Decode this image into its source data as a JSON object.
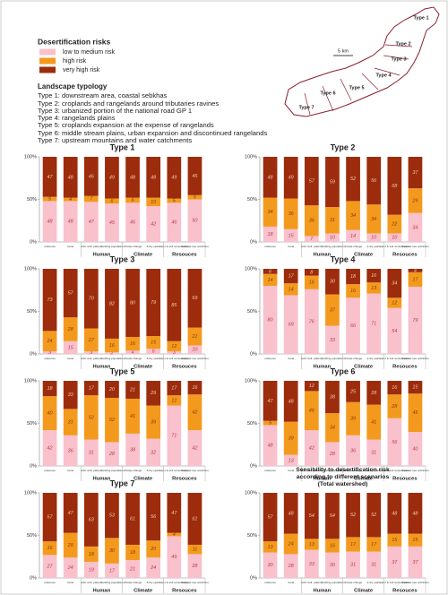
{
  "legend": {
    "title": "Desertification risks",
    "items": [
      {
        "name": "low to medium risk",
        "color": "#f8c1cc"
      },
      {
        "name": "high risk",
        "color": "#f39a1e"
      },
      {
        "name": "very high risk",
        "color": "#9c2c0c"
      }
    ]
  },
  "typology": {
    "title": "Landscape typology",
    "items": [
      "Type 1: downstream area, coastal sebkhas",
      "Type 2: croplands and rangelands around tributaries ravines",
      "Type 3: urbanized portion of the national road GP 1",
      "Type 4: rangelands plains",
      "Type 5: croplands expansion at the expense of rangelands",
      "Type 6: middle stream plains, urban expansion and discontinued rangelands",
      "Type 7: upstream mountains and water catchments"
    ]
  },
  "map": {
    "scale": "5 km",
    "labels": [
      "Type 1",
      "Type 2",
      "Type 3",
      "Type 4",
      "Type 5",
      "Type 6",
      "Type 7"
    ]
  },
  "chart_data": [
    {
      "type": "bar",
      "stacked": true,
      "title": "Type 1",
      "categories": [
        "reference",
        "trend",
        "arch./cult. pattern",
        "doubling population",
        "climate change",
        "4-dry years",
        "water & soil conservation",
        "firewood use restriction"
      ],
      "groups": [
        "Human",
        "Climate",
        "Resouces"
      ],
      "series": [
        {
          "color": "#f8c1cc",
          "values": [
            48,
            48,
            47,
            45,
            46,
            42,
            46,
            50
          ]
        },
        {
          "color": "#f39a1e",
          "values": [
            5,
            4,
            7,
            6,
            6,
            10,
            5,
            5
          ]
        },
        {
          "color": "#9c2c0c",
          "values": [
            47,
            48,
            46,
            49,
            48,
            48,
            49,
            45
          ]
        }
      ],
      "ylim": [
        0,
        100
      ],
      "yticks": [
        {
          "value": 0,
          "label": "0%"
        },
        {
          "value": 50,
          "label": "50%"
        },
        {
          "value": 100,
          "label": "100%"
        }
      ]
    },
    {
      "type": "bar",
      "stacked": true,
      "title": "Type 2",
      "categories": [
        "reference",
        "trend",
        "arch./cult. pattern",
        "doubling population",
        "climate change",
        "4-dry years",
        "water & soil conservation",
        "firewood use restriction"
      ],
      "groups": [
        "Human",
        "Climate",
        "Resouces"
      ],
      "series": [
        {
          "color": "#f8c1cc",
          "values": [
            18,
            15,
            7,
            10,
            14,
            10,
            10,
            34
          ]
        },
        {
          "color": "#f39a1e",
          "values": [
            34,
            36,
            36,
            31,
            34,
            34,
            22,
            29
          ]
        },
        {
          "color": "#9c2c0c",
          "values": [
            48,
            49,
            57,
            59,
            52,
            56,
            68,
            37
          ]
        }
      ],
      "ylim": [
        0,
        100
      ],
      "yticks": [
        {
          "value": 0,
          "label": "0%"
        },
        {
          "value": 50,
          "label": "50%"
        },
        {
          "value": 100,
          "label": "100%"
        }
      ]
    },
    {
      "type": "bar",
      "stacked": true,
      "title": "Type 3",
      "categories": [
        "reference",
        "trend",
        "arch./cult. pattern",
        "doubling population",
        "climate change",
        "4-dry years",
        "water & soil conservation",
        "firewood use restriction"
      ],
      "groups": [
        "Human",
        "Climate",
        "Resouces"
      ],
      "series": [
        {
          "color": "#f8c1cc",
          "values": [
            3,
            15,
            3,
            2,
            4,
            6,
            3,
            10
          ]
        },
        {
          "color": "#f39a1e",
          "values": [
            24,
            28,
            27,
            16,
            16,
            15,
            12,
            21
          ]
        },
        {
          "color": "#9c2c0c",
          "values": [
            73,
            57,
            70,
            82,
            80,
            79,
            85,
            69
          ]
        }
      ],
      "ylim": [
        0,
        100
      ],
      "yticks": [
        {
          "value": 0,
          "label": "0%"
        },
        {
          "value": 50,
          "label": "50%"
        },
        {
          "value": 100,
          "label": "100%"
        }
      ]
    },
    {
      "type": "bar",
      "stacked": true,
      "title": "Type 4",
      "categories": [
        "reference",
        "trend",
        "arch./cult. pattern",
        "doubling population",
        "climate change",
        "4-dry years",
        "water & soil conservation",
        "firewood use restriction"
      ],
      "groups": [
        "Human",
        "Climate",
        "Resouces"
      ],
      "series": [
        {
          "color": "#f8c1cc",
          "values": [
            80,
            69,
            76,
            33,
            66,
            71,
            54,
            79
          ]
        },
        {
          "color": "#f39a1e",
          "values": [
            14,
            14,
            16,
            37,
            16,
            13,
            12,
            17
          ]
        },
        {
          "color": "#9c2c0c",
          "values": [
            6,
            17,
            8,
            30,
            18,
            16,
            34,
            4
          ]
        }
      ],
      "ylim": [
        0,
        100
      ],
      "yticks": [
        {
          "value": 0,
          "label": "0%"
        },
        {
          "value": 50,
          "label": "50%"
        },
        {
          "value": 100,
          "label": "100%"
        }
      ]
    },
    {
      "type": "bar",
      "stacked": true,
      "title": "Type 5",
      "categories": [
        "reference",
        "trend",
        "arch./cult. pattern",
        "doubling population",
        "climate change",
        "4-dry years",
        "water & soil conservation",
        "firewood use restriction"
      ],
      "groups": [
        "Human",
        "Climate",
        "Resouces"
      ],
      "series": [
        {
          "color": "#f8c1cc",
          "values": [
            42,
            36,
            31,
            28,
            38,
            32,
            71,
            42
          ]
        },
        {
          "color": "#f39a1e",
          "values": [
            40,
            31,
            52,
            52,
            41,
            39,
            12,
            42
          ]
        },
        {
          "color": "#9c2c0c",
          "values": [
            18,
            33,
            17,
            20,
            21,
            29,
            17,
            16
          ]
        }
      ],
      "ylim": [
        0,
        100
      ],
      "yticks": [
        {
          "value": 0,
          "label": "0%"
        },
        {
          "value": 50,
          "label": "50%"
        },
        {
          "value": 100,
          "label": "100%"
        }
      ]
    },
    {
      "type": "bar",
      "stacked": true,
      "title": "Type 6",
      "categories": [
        "reference",
        "trend",
        "arch./cult. pattern",
        "doubling population",
        "climate change",
        "4-dry years",
        "water & soil conservation",
        "firewood use restriction"
      ],
      "groups": [
        "Human",
        "Climate",
        "Resouces"
      ],
      "series": [
        {
          "color": "#f8c1cc",
          "values": [
            48,
            13,
            42,
            28,
            36,
            31,
            56,
            40
          ]
        },
        {
          "color": "#f39a1e",
          "values": [
            5,
            39,
            46,
            34,
            39,
            41,
            28,
            45
          ]
        },
        {
          "color": "#9c2c0c",
          "values": [
            47,
            48,
            12,
            38,
            25,
            28,
            16,
            15
          ]
        }
      ],
      "ylim": [
        0,
        100
      ],
      "yticks": [
        {
          "value": 0,
          "label": "0%"
        },
        {
          "value": 50,
          "label": "50%"
        },
        {
          "value": 100,
          "label": "100%"
        }
      ]
    },
    {
      "type": "bar",
      "stacked": true,
      "title": "Type 7",
      "categories": [
        "reference",
        "trend",
        "arch./cult. pattern",
        "doubling population",
        "climate change",
        "4-dry years",
        "water & soil conservation",
        "firewood use restriction"
      ],
      "groups": [
        "Human",
        "Climate",
        "Resouces"
      ],
      "series": [
        {
          "color": "#f8c1cc",
          "values": [
            27,
            24,
            19,
            17,
            21,
            24,
            49,
            28
          ]
        },
        {
          "color": "#f39a1e",
          "values": [
            16,
            29,
            18,
            30,
            18,
            20,
            4,
            11
          ]
        },
        {
          "color": "#9c2c0c",
          "values": [
            57,
            47,
            63,
            53,
            61,
            56,
            47,
            61
          ]
        }
      ],
      "ylim": [
        0,
        100
      ],
      "yticks": [
        {
          "value": 0,
          "label": "0%"
        },
        {
          "value": 50,
          "label": "50%"
        },
        {
          "value": 100,
          "label": "100%"
        }
      ]
    },
    {
      "type": "bar",
      "stacked": true,
      "title": "Sensibility to desertification risk according to different scenarios (Total watershed)",
      "categories": [
        "reference",
        "trend",
        "arch./cult. pattern",
        "doubling population",
        "climate change",
        "4-dry years",
        "water & soil conservation",
        "firewood use restriction"
      ],
      "groups": [
        "Human",
        "Climate",
        "Resouces"
      ],
      "series": [
        {
          "color": "#f8c1cc",
          "values": [
            30,
            28,
            33,
            30,
            31,
            31,
            37,
            37
          ]
        },
        {
          "color": "#f39a1e",
          "values": [
            13,
            24,
            13,
            16,
            17,
            17,
            15,
            15
          ]
        },
        {
          "color": "#9c2c0c",
          "values": [
            57,
            48,
            54,
            54,
            52,
            52,
            48,
            48
          ]
        }
      ],
      "ylim": [
        0,
        100
      ],
      "yticks": [
        {
          "value": 0,
          "label": "0%"
        },
        {
          "value": 50,
          "label": "50%"
        },
        {
          "value": 100,
          "label": "100%"
        }
      ]
    }
  ]
}
